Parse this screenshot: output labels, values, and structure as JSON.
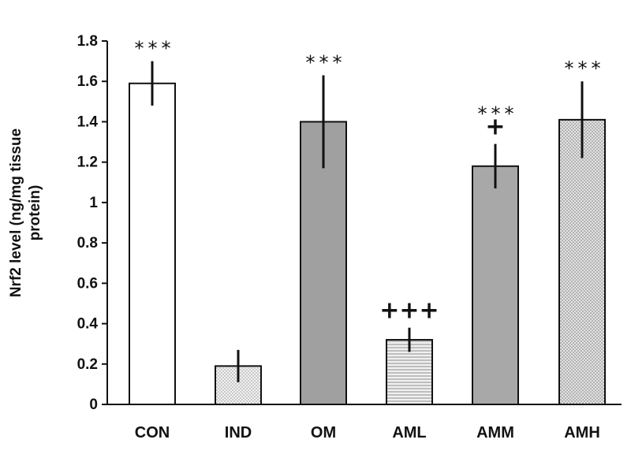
{
  "chart_data": {
    "type": "bar",
    "title": "",
    "xlabel": "",
    "ylabel_lines": [
      "Nrf2 level (ng/mg tissue",
      "protein)"
    ],
    "ylim": [
      0,
      1.8
    ],
    "yticks": [
      "0",
      "0.2",
      "0.4",
      "0.6",
      "0.8",
      "1",
      "1.2",
      "1.4",
      "1.6",
      "1.8"
    ],
    "categories": [
      "CON",
      "IND",
      "OM",
      "AML",
      "AMM",
      "AMH"
    ],
    "values": [
      1.59,
      0.19,
      1.4,
      0.32,
      1.18,
      1.41
    ],
    "errors": [
      0.11,
      0.08,
      0.23,
      0.06,
      0.11,
      0.19
    ],
    "fills": [
      "#ffffff",
      "dots-light",
      "#a0a0a0",
      "h-lines",
      "#a8a8a8",
      "dots-mid"
    ],
    "annotations": [
      {
        "category": "CON",
        "stars": "***",
        "plus": ""
      },
      {
        "category": "IND",
        "stars": "",
        "plus": ""
      },
      {
        "category": "OM",
        "stars": "***",
        "plus": ""
      },
      {
        "category": "AML",
        "stars": "",
        "plus": "+++"
      },
      {
        "category": "AMM",
        "stars": "***",
        "plus": "+"
      },
      {
        "category": "AMH",
        "stars": "***",
        "plus": ""
      }
    ],
    "grid": false,
    "legend": "none"
  }
}
